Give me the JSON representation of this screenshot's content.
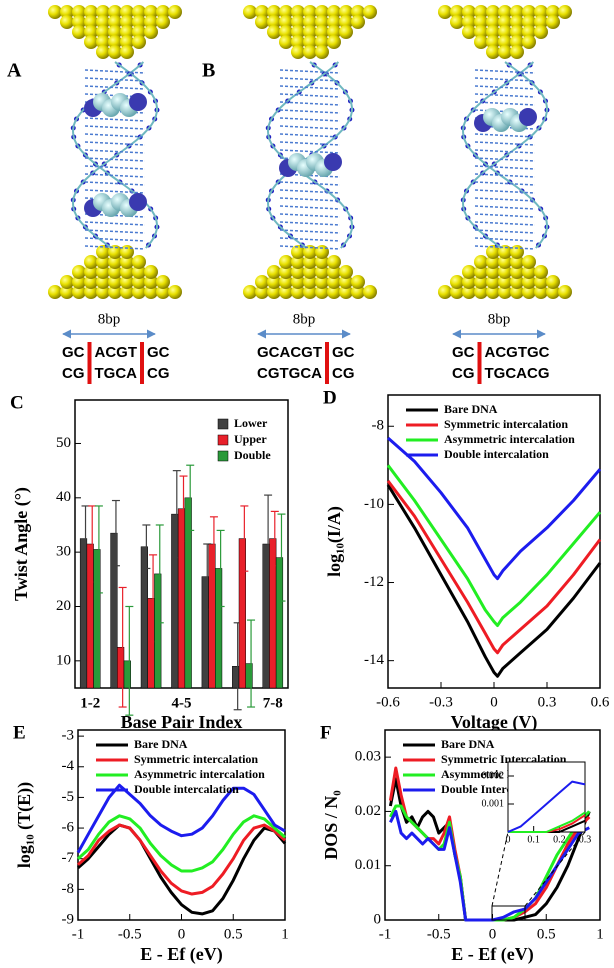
{
  "structures": [
    {
      "label": "A",
      "scale": "8bp",
      "top": [
        "GC",
        "ACGT",
        "GC"
      ],
      "bottom": [
        "CG",
        "TGCA",
        "CG"
      ]
    },
    {
      "label": "B",
      "scale": "8bp",
      "top": [
        "GCACGT",
        "GC"
      ],
      "bottom": [
        "CGTGCA",
        "CG"
      ]
    },
    {
      "scale": "8bp",
      "top": [
        "GC",
        "ACGTGC"
      ],
      "bottom": [
        "CG",
        "TGCACG"
      ]
    }
  ],
  "chart_data": [
    {
      "type": "bar",
      "label": "C",
      "xlabel": "Base Pair Index",
      "ylabel": "Twist Angle (°)",
      "categories": [
        "1-2",
        null,
        null,
        "4-5",
        null,
        null,
        "7-8"
      ],
      "ylim": [
        5,
        58
      ],
      "yticks": [
        10,
        20,
        30,
        40,
        50
      ],
      "legend": "upper right",
      "series": [
        {
          "name": "Lower",
          "color": "#404040",
          "values": [
            32.5,
            33.5,
            31,
            37,
            25.5,
            9,
            31.5
          ],
          "errors": [
            6,
            6,
            4,
            8,
            6,
            8,
            9
          ]
        },
        {
          "name": "Upper",
          "color": "#e8202a",
          "values": [
            31.5,
            12.5,
            21.5,
            38,
            31.5,
            32.5,
            32.5
          ],
          "errors": [
            7,
            11,
            8,
            6,
            5,
            6,
            5
          ]
        },
        {
          "name": "Double",
          "color": "#2a9a3a",
          "values": [
            30.5,
            10,
            26,
            40,
            27,
            9.5,
            29
          ],
          "errors": [
            8,
            10,
            9,
            6,
            7,
            8,
            8
          ]
        }
      ]
    },
    {
      "type": "line",
      "label": "D",
      "xlabel": "Voltage (V)",
      "ylabel": "log₁₀(I/A)",
      "xlim": [
        -0.6,
        0.6
      ],
      "xticks": [
        -0.6,
        -0.3,
        0,
        0.3,
        0.6
      ],
      "ylim": [
        -14.7,
        -7.2
      ],
      "yticks": [
        -14,
        -12,
        -10,
        -8
      ],
      "legend": "upper left",
      "x": [
        -0.6,
        -0.45,
        -0.3,
        -0.15,
        -0.05,
        0,
        0.02,
        0.05,
        0.15,
        0.3,
        0.45,
        0.6
      ],
      "series": [
        {
          "name": "Bare DNA",
          "color": "#000000",
          "values": [
            -9.5,
            -10.6,
            -11.8,
            -13.0,
            -13.9,
            -14.3,
            -14.4,
            -14.2,
            -13.8,
            -13.2,
            -12.4,
            -11.5
          ]
        },
        {
          "name": "Symmetric intercalation",
          "color": "#ee1c24",
          "values": [
            -9.4,
            -10.3,
            -11.4,
            -12.5,
            -13.3,
            -13.7,
            -13.8,
            -13.6,
            -13.2,
            -12.6,
            -11.8,
            -10.9
          ]
        },
        {
          "name": "Asymmetric intercalation",
          "color": "#22ee22",
          "values": [
            -9.0,
            -9.9,
            -10.9,
            -11.9,
            -12.7,
            -13.0,
            -13.1,
            -12.9,
            -12.5,
            -11.8,
            -11.0,
            -10.2
          ]
        },
        {
          "name": "Double intercalation",
          "color": "#1c1cee",
          "values": [
            -8.3,
            -8.9,
            -9.7,
            -10.6,
            -11.4,
            -11.8,
            -11.9,
            -11.7,
            -11.2,
            -10.6,
            -9.9,
            -9.1
          ]
        }
      ]
    },
    {
      "type": "line",
      "label": "E",
      "xlabel": "E - Ef (eV)",
      "ylabel": "log₁₀ (T(E))",
      "xlim": [
        -1,
        1
      ],
      "xticks": [
        -1,
        -0.5,
        0,
        0.5,
        1
      ],
      "ylim": [
        -9,
        -2.8
      ],
      "yticks": [
        -9,
        -8,
        -7,
        -6,
        -5,
        -4,
        -3
      ],
      "legend": "upper left",
      "x": [
        -1,
        -0.9,
        -0.8,
        -0.7,
        -0.6,
        -0.5,
        -0.4,
        -0.3,
        -0.2,
        -0.1,
        0,
        0.1,
        0.2,
        0.3,
        0.4,
        0.5,
        0.6,
        0.7,
        0.8,
        0.9,
        1
      ],
      "series": [
        {
          "name": "Bare DNA",
          "color": "#000000",
          "values": [
            -7.3,
            -7.0,
            -6.6,
            -6.2,
            -5.9,
            -6.0,
            -6.4,
            -7.0,
            -7.6,
            -8.1,
            -8.5,
            -8.75,
            -8.8,
            -8.7,
            -8.3,
            -7.7,
            -7.0,
            -6.4,
            -6.0,
            -6.1,
            -6.5
          ]
        },
        {
          "name": "Symmetric intercalation",
          "color": "#ee1c24",
          "values": [
            -7.2,
            -6.9,
            -6.4,
            -6.1,
            -5.9,
            -6.0,
            -6.4,
            -6.9,
            -7.4,
            -7.8,
            -8.05,
            -8.15,
            -8.1,
            -7.9,
            -7.5,
            -7.0,
            -6.4,
            -6.0,
            -5.9,
            -6.1,
            -6.4
          ]
        },
        {
          "name": "Asymmetric intercalation",
          "color": "#22ee22",
          "values": [
            -7.0,
            -6.7,
            -6.2,
            -5.8,
            -5.6,
            -5.7,
            -6.0,
            -6.5,
            -6.9,
            -7.2,
            -7.4,
            -7.4,
            -7.3,
            -7.1,
            -6.7,
            -6.2,
            -5.8,
            -5.6,
            -5.7,
            -6.0,
            -6.3
          ]
        },
        {
          "name": "Double intercalation",
          "color": "#1c1cee",
          "values": [
            -6.8,
            -6.2,
            -5.6,
            -5.0,
            -4.6,
            -4.9,
            -5.2,
            -5.6,
            -5.9,
            -6.1,
            -6.25,
            -6.2,
            -6.0,
            -5.6,
            -5.1,
            -4.7,
            -4.7,
            -4.9,
            -5.4,
            -5.9,
            -6.1
          ]
        }
      ]
    },
    {
      "type": "line",
      "label": "F",
      "xlabel": "E - Ef (eV)",
      "ylabel": "DOS / N₀",
      "xlim": [
        -1,
        1
      ],
      "xticks": [
        -1,
        -0.5,
        0,
        0.5,
        1
      ],
      "ylim": [
        0,
        0.035
      ],
      "yticks": [
        0,
        0.01,
        0.02,
        0.03
      ],
      "legend": "upper left",
      "x": [
        -0.95,
        -0.9,
        -0.85,
        -0.8,
        -0.75,
        -0.7,
        -0.65,
        -0.6,
        -0.55,
        -0.5,
        -0.45,
        -0.4,
        -0.35,
        -0.3,
        -0.25,
        -0.2,
        -0.1,
        0,
        0.1,
        0.2,
        0.3,
        0.4,
        0.5,
        0.6,
        0.7,
        0.8,
        0.9
      ],
      "series": [
        {
          "name": "Bare DNA",
          "color": "#000000",
          "values": [
            0.021,
            0.026,
            0.021,
            0.018,
            0.019,
            0.017,
            0.019,
            0.02,
            0.019,
            0.016,
            0.017,
            0.018,
            0.012,
            0.008,
            0,
            0,
            0,
            0,
            0,
            0,
            0.0005,
            0.001,
            0.003,
            0.006,
            0.01,
            0.015,
            0.02
          ]
        },
        {
          "name": "Symmetric Intercalation",
          "color": "#ee1c24",
          "values": [
            0.022,
            0.028,
            0.023,
            0.019,
            0.018,
            0.017,
            0.016,
            0.015,
            0.015,
            0.014,
            0.016,
            0.019,
            0.013,
            0.008,
            0,
            0,
            0,
            0,
            0,
            0.0005,
            0.0015,
            0.003,
            0.006,
            0.01,
            0.014,
            0.017,
            0.019
          ]
        },
        {
          "name": "Asymmetric Intercalation",
          "color": "#22ee22",
          "values": [
            0.019,
            0.021,
            0.021,
            0.019,
            0.018,
            0.017,
            0.016,
            0.015,
            0.014,
            0.013,
            0.014,
            0.018,
            0.012,
            0.008,
            0,
            0,
            0,
            0,
            0,
            0.0005,
            0.002,
            0.004,
            0.008,
            0.012,
            0.015,
            0.018,
            0.02
          ]
        },
        {
          "name": "Double Intercalation",
          "color": "#1c1cee",
          "values": [
            0.018,
            0.02,
            0.016,
            0.015,
            0.016,
            0.015,
            0.014,
            0.015,
            0.014,
            0.013,
            0.013,
            0.017,
            0.012,
            0.007,
            0,
            0,
            0,
            0,
            0.0005,
            0.0015,
            0.002,
            0.004,
            0.007,
            0.01,
            0.013,
            0.016,
            0.017
          ]
        }
      ]
    },
    {
      "type": "line",
      "xlim": [
        0,
        0.3
      ],
      "xticks": [
        0,
        0.1,
        0.2,
        0.3
      ],
      "ylim": [
        0,
        0.0025
      ],
      "yticks": [
        0.001,
        0.002
      ],
      "x": [
        0,
        0.05,
        0.1,
        0.15,
        0.2,
        0.25,
        0.3
      ],
      "series": [
        {
          "color": "#000000",
          "values": [
            0,
            0,
            0,
            0,
            0,
            0.0002,
            0.0004
          ]
        },
        {
          "color": "#ee1c24",
          "values": [
            0,
            0,
            0,
            0,
            0.0001,
            0.0003,
            0.0006
          ]
        },
        {
          "color": "#22ee22",
          "values": [
            0,
            0,
            0,
            0,
            0.0002,
            0.0004,
            0.0007
          ]
        },
        {
          "color": "#1c1cee",
          "values": [
            0,
            0.0002,
            0.0006,
            0.001,
            0.0014,
            0.0018,
            0.0017
          ]
        }
      ]
    }
  ]
}
